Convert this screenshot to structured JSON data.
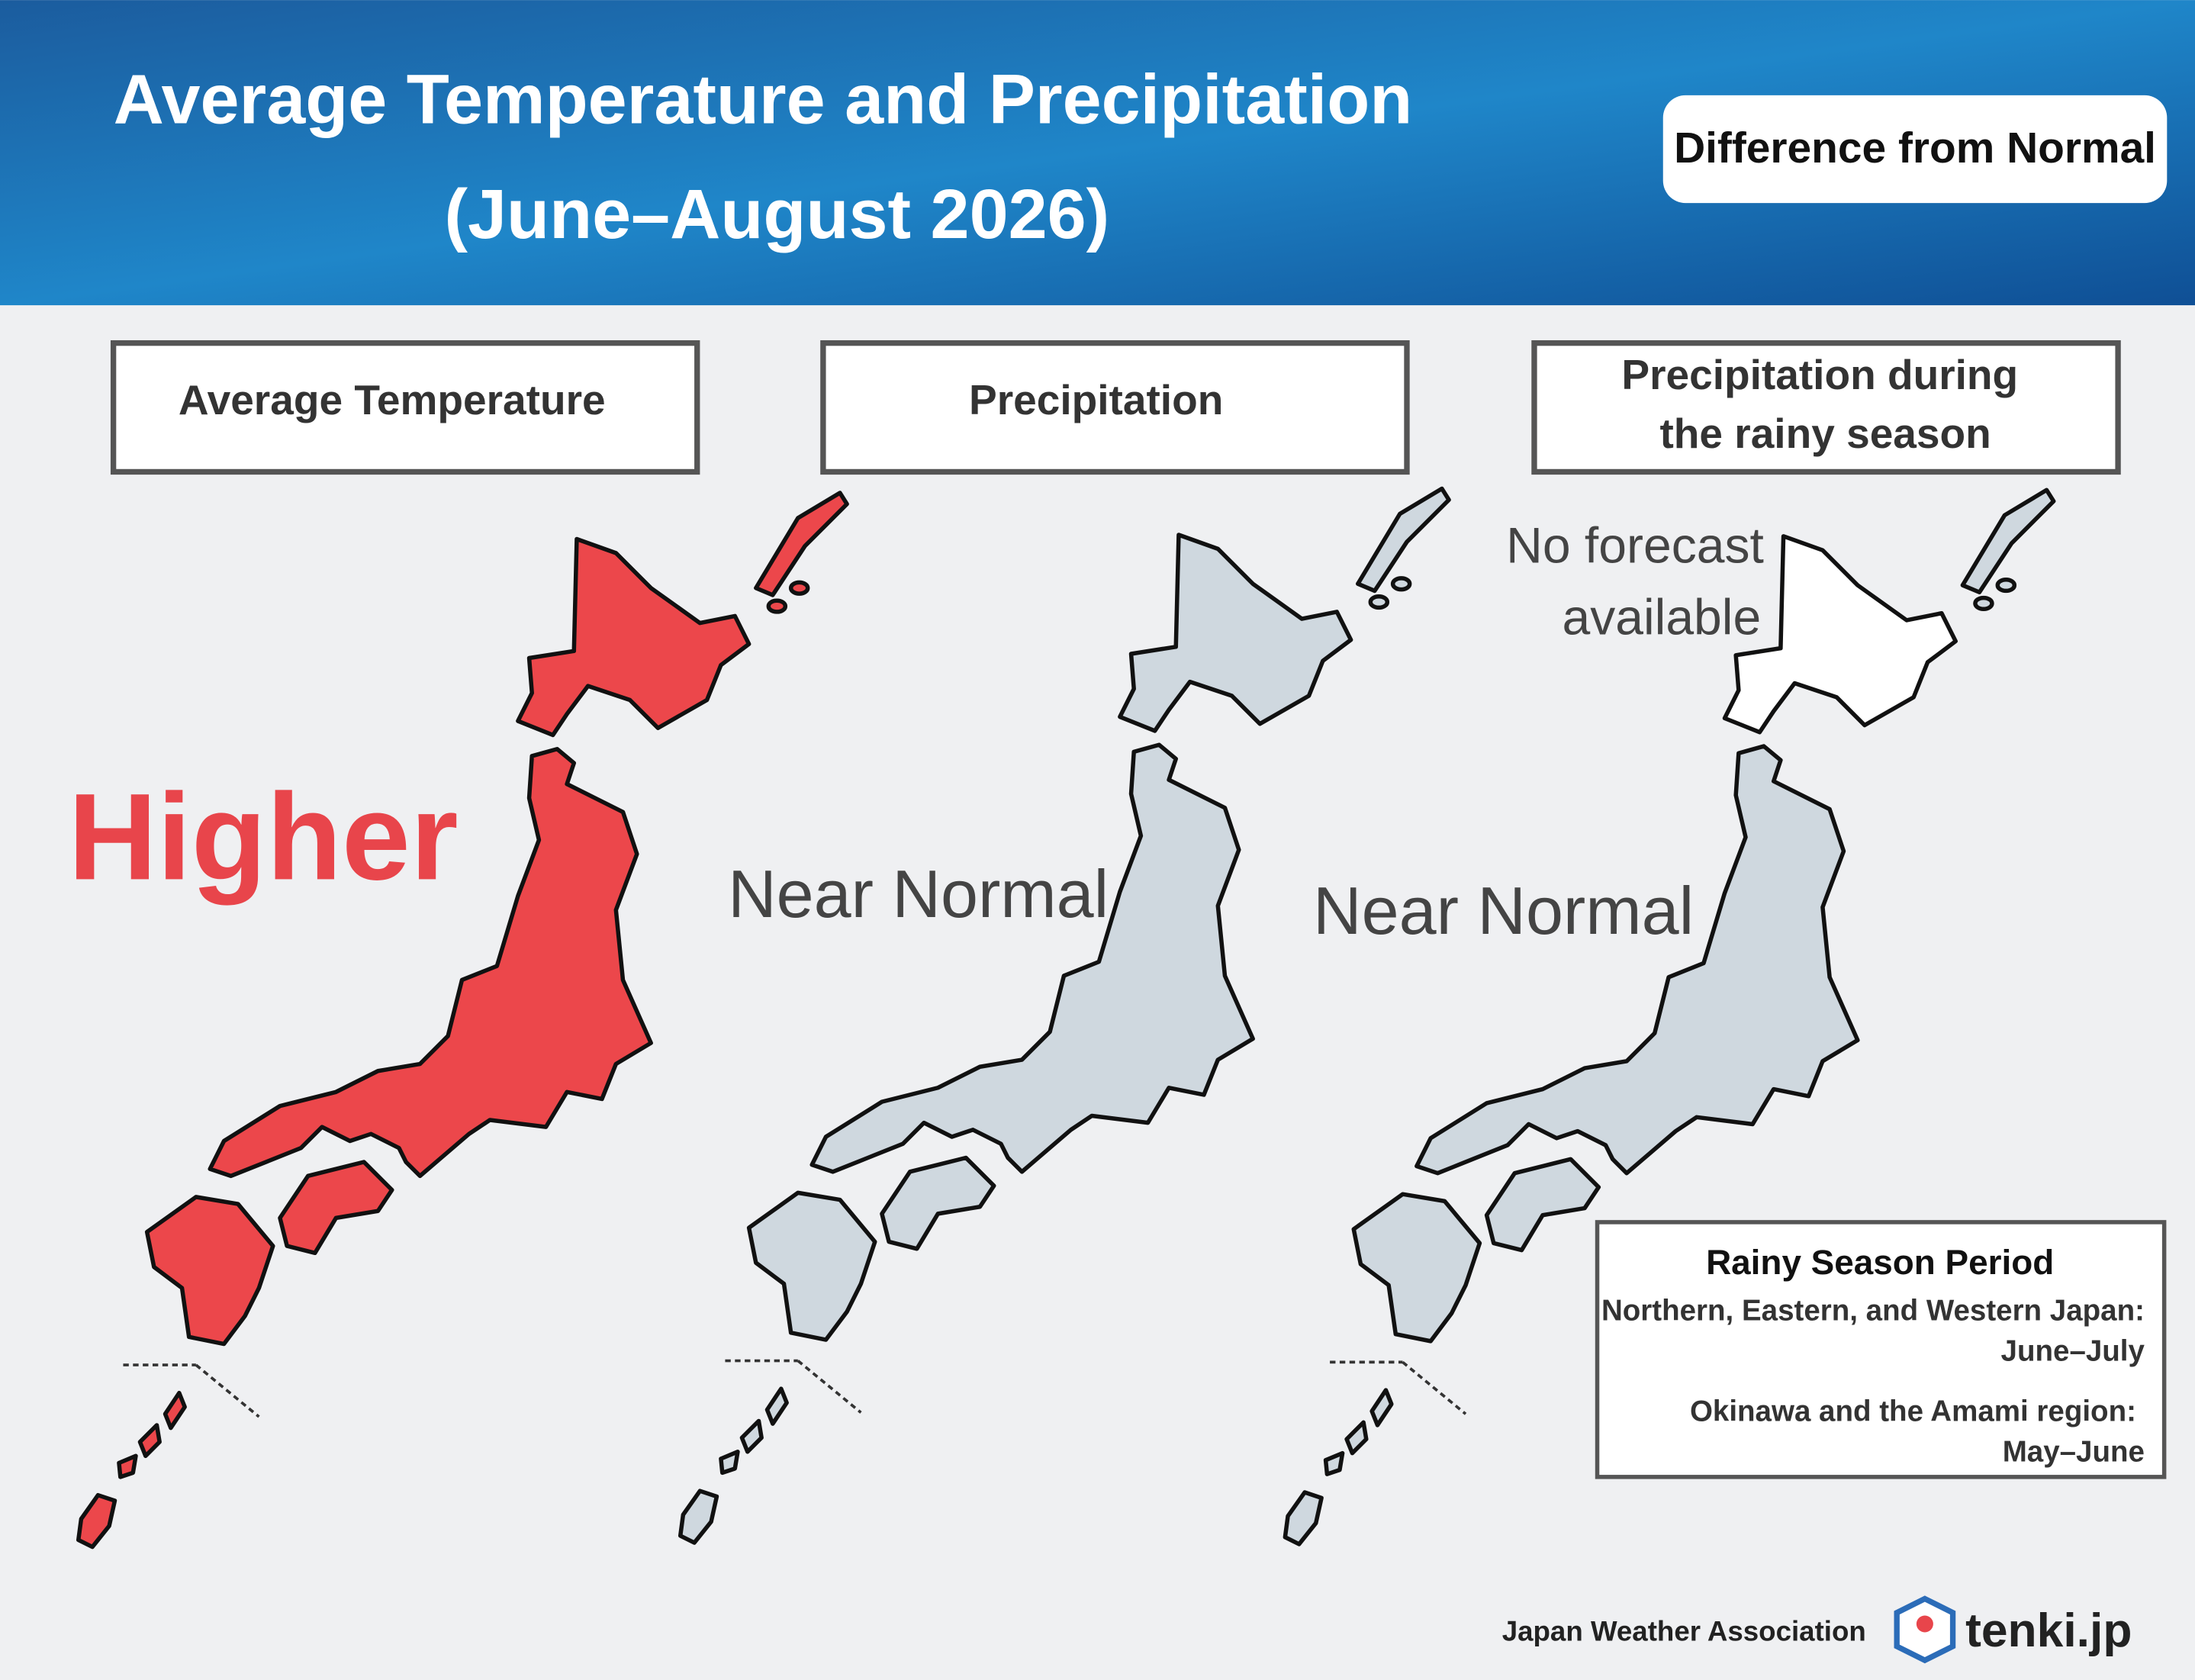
{
  "header": {
    "title": [
      "Average Temperature and Precipitation",
      "(June–August 2026)"
    ],
    "badge": "Difference from Normal"
  },
  "panels": [
    {
      "heading": [
        "Average Temperature"
      ],
      "outlook": "Higher"
    },
    {
      "heading": [
        "Precipitation"
      ],
      "outlook": "Near Normal"
    },
    {
      "heading": [
        "Precipitation during",
        "the rainy season"
      ],
      "outlook": "Near Normal",
      "note": [
        "No forecast",
        "available"
      ]
    }
  ],
  "legend": {
    "title": "Rainy Season Period",
    "items": [
      {
        "region": "Northern, Eastern, and Western Japan:",
        "period": "June–July"
      },
      {
        "region": "Okinawa and the Amami region:",
        "period": "May–June"
      }
    ]
  },
  "footer": {
    "organization": "Japan Weather Association",
    "brand": "tenki.jp"
  }
}
